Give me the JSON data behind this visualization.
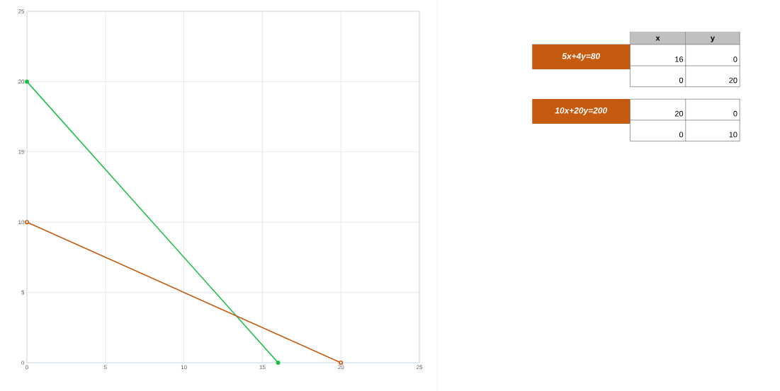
{
  "chart_data": [
    {
      "type": "line",
      "xlim": [
        0,
        25
      ],
      "ylim": [
        0,
        25
      ],
      "xticks": [
        0,
        5,
        10,
        15,
        20,
        25
      ],
      "yticks": [
        0,
        5,
        10,
        15,
        20,
        25
      ],
      "grid": true,
      "marker": "circle",
      "series": [
        {
          "color": "#1fbf4a",
          "x": [
            0,
            16
          ],
          "values": [
            20,
            0
          ]
        },
        {
          "color": "#c55a11",
          "x": [
            0,
            20
          ],
          "values": [
            10,
            0
          ]
        }
      ]
    },
    {
      "type": "other",
      "annotations": [
        "x",
        "y",
        "5x+4y=80",
        "16",
        "0",
        "0",
        "20",
        "10x+20y=200",
        "20",
        "0",
        "0",
        "10"
      ]
    }
  ]
}
